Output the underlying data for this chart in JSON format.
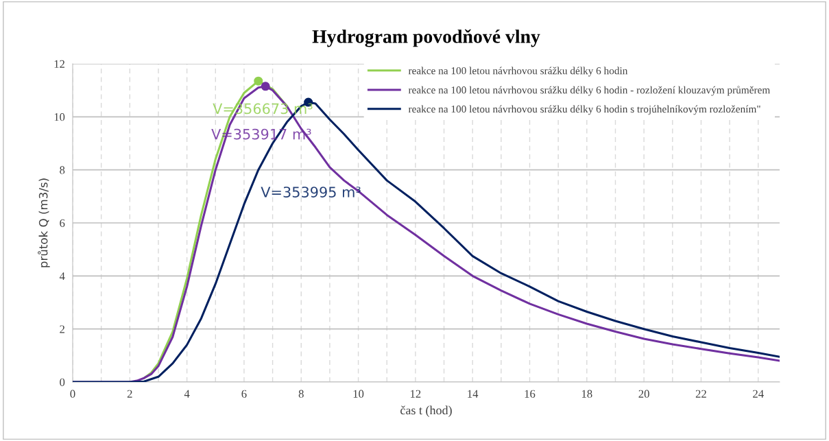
{
  "chart_data": {
    "type": "line",
    "title": "Hydrogram povodňové vlny",
    "xlabel": "čas t (hod)",
    "ylabel": "průtok Q (m3/s)",
    "xlim": [
      0,
      24.75
    ],
    "ylim": [
      0,
      12
    ],
    "yticks": [
      0,
      2,
      4,
      6,
      8,
      10,
      12
    ],
    "xticks": [
      0,
      {
        "value": 1,
        "label": null
      },
      2,
      {
        "value": 3,
        "label": null
      },
      4,
      {
        "value": 5,
        "label": null
      },
      6,
      {
        "value": 7,
        "label": null
      },
      8,
      {
        "value": 9,
        "label": null
      },
      10,
      {
        "value": 11,
        "label": null
      },
      12,
      {
        "value": 13,
        "label": null
      },
      14,
      {
        "value": 15,
        "label": null
      },
      16,
      {
        "value": 17,
        "label": null
      },
      18,
      {
        "value": 19,
        "label": null
      },
      20,
      {
        "value": 21,
        "label": null
      },
      22,
      {
        "value": 23,
        "label": null
      },
      24
    ],
    "grid": true,
    "legend": "top right",
    "line_style": "solid",
    "marker": "none",
    "series": [
      {
        "name": "reakce na 100 letou návrhovou srážku délky 6 hodin",
        "color": "#92d050",
        "x": [
          2.5,
          2.75,
          3,
          3.5,
          4,
          4.5,
          5,
          5.5,
          6,
          6.5,
          7,
          7.5
        ],
        "values": [
          0.15,
          0.35,
          0.7,
          1.9,
          3.9,
          6.3,
          8.4,
          10.0,
          10.9,
          11.35,
          11.05,
          10.4
        ]
      },
      {
        "name": "reakce na 100 letou návrhovou srážku délky 6 hodin - rozložení klouzavým průměrem",
        "color": "#7030a0",
        "x": [
          0,
          1,
          2,
          2.25,
          2.5,
          2.75,
          3,
          3.5,
          4,
          4.5,
          5,
          5.5,
          6,
          6.5,
          6.75,
          7,
          7.5,
          8,
          8.5,
          9,
          9.5,
          10,
          11,
          12,
          13,
          14,
          15,
          16,
          17,
          18,
          19,
          20,
          21,
          22,
          23,
          24,
          24.75
        ],
        "values": [
          0,
          0,
          0,
          0.05,
          0.15,
          0.3,
          0.6,
          1.7,
          3.6,
          5.9,
          8.0,
          9.7,
          10.7,
          11.1,
          11.15,
          11.0,
          10.4,
          9.55,
          8.85,
          8.1,
          7.6,
          7.2,
          6.3,
          5.55,
          4.75,
          4.0,
          3.45,
          2.95,
          2.55,
          2.2,
          1.9,
          1.63,
          1.42,
          1.25,
          1.08,
          0.93,
          0.8
        ]
      },
      {
        "name": "reakce na 100 letou návrhovou srážku délky 6 hodin s trojúhelníkovým rozložením\"",
        "color": "#002060",
        "x": [
          0,
          1,
          2,
          2.5,
          3,
          3.5,
          4,
          4.5,
          5,
          5.5,
          6,
          6.5,
          7,
          7.5,
          8,
          8.25,
          8.5,
          9,
          9.5,
          10,
          11,
          12,
          13,
          14,
          15,
          16,
          17,
          18,
          19,
          20,
          21,
          22,
          23,
          24,
          24.75
        ],
        "values": [
          0,
          0,
          0,
          0.02,
          0.2,
          0.7,
          1.4,
          2.4,
          3.7,
          5.2,
          6.7,
          8.0,
          9.0,
          9.8,
          10.4,
          10.55,
          10.5,
          9.9,
          9.35,
          8.75,
          7.6,
          6.8,
          5.8,
          4.75,
          4.1,
          3.6,
          3.05,
          2.65,
          2.3,
          2.0,
          1.72,
          1.5,
          1.28,
          1.1,
          0.95
        ]
      },
      {
        "type": "scatter",
        "marker": "circle",
        "color": "#92d050",
        "x": [
          6.5
        ],
        "values": [
          11.35
        ]
      },
      {
        "type": "scatter",
        "marker": "circle",
        "color": "#7030a0",
        "x": [
          6.75
        ],
        "values": [
          11.15
        ]
      },
      {
        "type": "scatter",
        "marker": "circle",
        "color": "#002060",
        "x": [
          8.25
        ],
        "values": [
          10.55
        ]
      }
    ],
    "annotations": [
      "V=356673 m³",
      "V=353917 m³",
      "V=353995 m³"
    ]
  }
}
